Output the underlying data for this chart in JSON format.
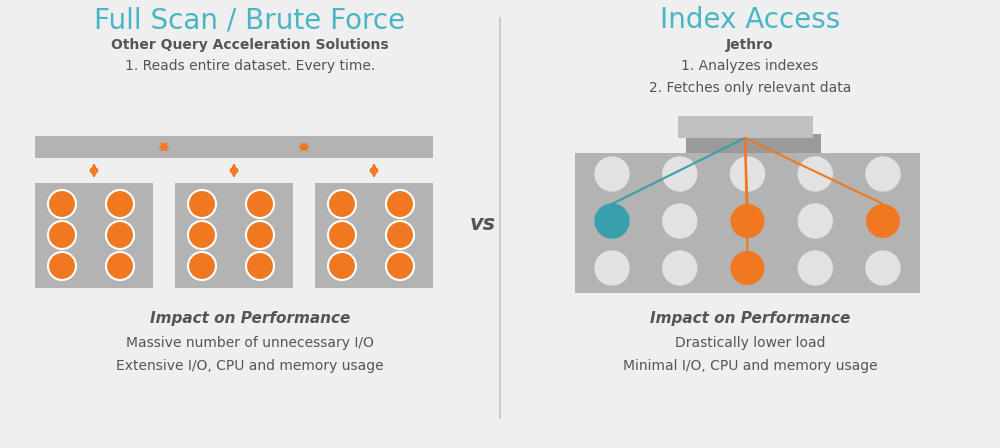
{
  "bg_color": "#efefef",
  "teal_color": "#4ab5c4",
  "orange_color": "#f07820",
  "dark_gray": "#555555",
  "box_gray": "#b3b3b3",
  "white_circle": "#e2e2e2",
  "teal_circle": "#3a9fad",
  "left_title": "Full Scan / Brute Force",
  "left_subtitle": "Other Query Acceleration Solutions",
  "left_step": "1. Reads entire dataset. Every time.",
  "left_impact_label": "Impact on Performance",
  "left_impact1": "Massive number of unnecessary I/O",
  "left_impact2": "Extensive I/O, CPU and memory usage",
  "right_title": "Index Access",
  "right_subtitle": "Jethro",
  "right_step1": "1. Analyzes indexes",
  "right_step2": "2. Fetches only relevant data",
  "right_impact_label": "Impact on Performance",
  "right_impact1": "Drastically lower load",
  "right_impact2": "Minimal I/O, CPU and memory usage",
  "vs_text": "vs"
}
